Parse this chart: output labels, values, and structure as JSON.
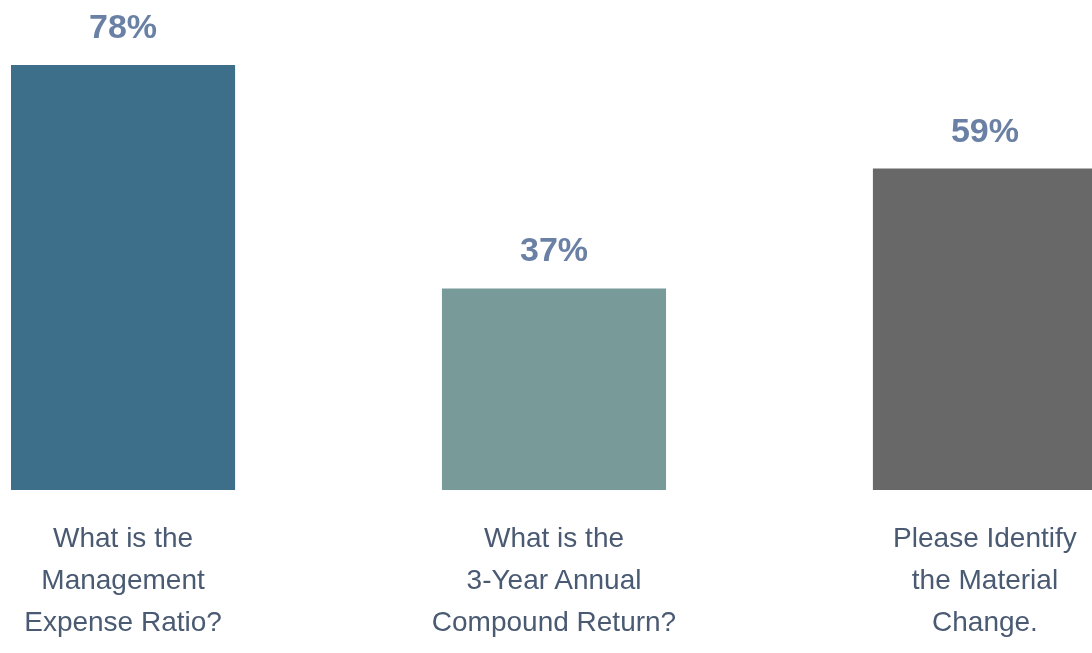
{
  "chart_data": {
    "type": "bar",
    "categories": [
      "What is the\nManagement\nExpense Ratio?",
      "What is the\n3-Year Annual\nCompound Return?",
      "Please Identify\nthe Material\nChange."
    ],
    "values": [
      78,
      37,
      59
    ],
    "colors": [
      "#3d6e8a",
      "#789b9a",
      "#686868"
    ],
    "value_labels": [
      "78%",
      "37%",
      "59%"
    ]
  }
}
